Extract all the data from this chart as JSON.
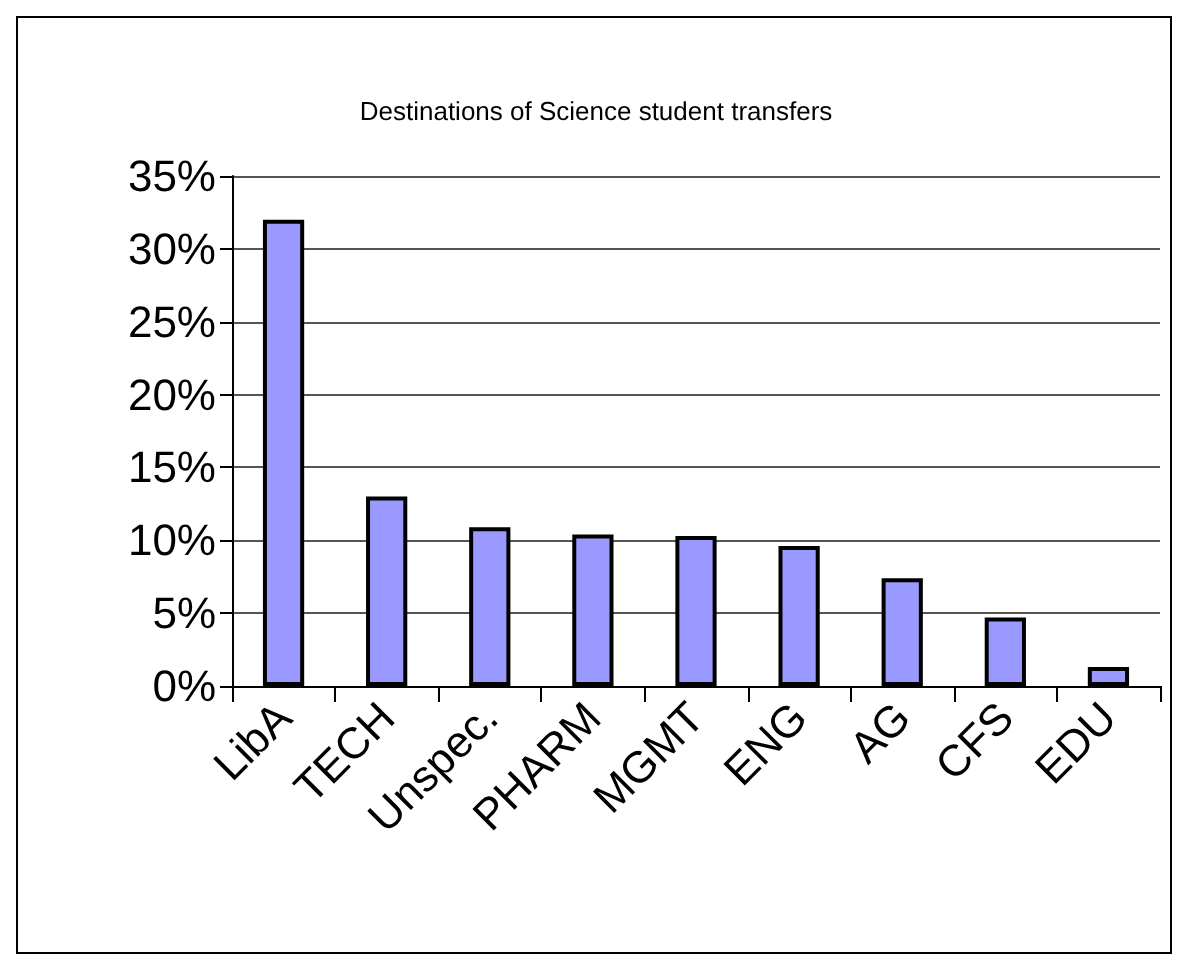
{
  "chart_data": {
    "type": "bar",
    "title": "Destinations of Science student transfers",
    "categories": [
      "LibA",
      "TECH",
      "Unspec.",
      "PHARM",
      "MGMT",
      "ENG",
      "AG",
      "CFS",
      "EDU"
    ],
    "values": [
      32,
      13,
      10.9,
      10.4,
      10.3,
      9.6,
      7.4,
      4.7,
      1.3
    ],
    "color": "#9999ff",
    "ylim": [
      0,
      35
    ],
    "yticks": [
      {
        "value": 0,
        "label": "0%"
      },
      {
        "value": 5,
        "label": "5%"
      },
      {
        "value": 10,
        "label": "10%"
      },
      {
        "value": 15,
        "label": "15%"
      },
      {
        "value": 20,
        "label": "20%"
      },
      {
        "value": 25,
        "label": "25%"
      },
      {
        "value": 30,
        "label": "30%"
      },
      {
        "value": 35,
        "label": "35%"
      }
    ],
    "grid": "y"
  }
}
